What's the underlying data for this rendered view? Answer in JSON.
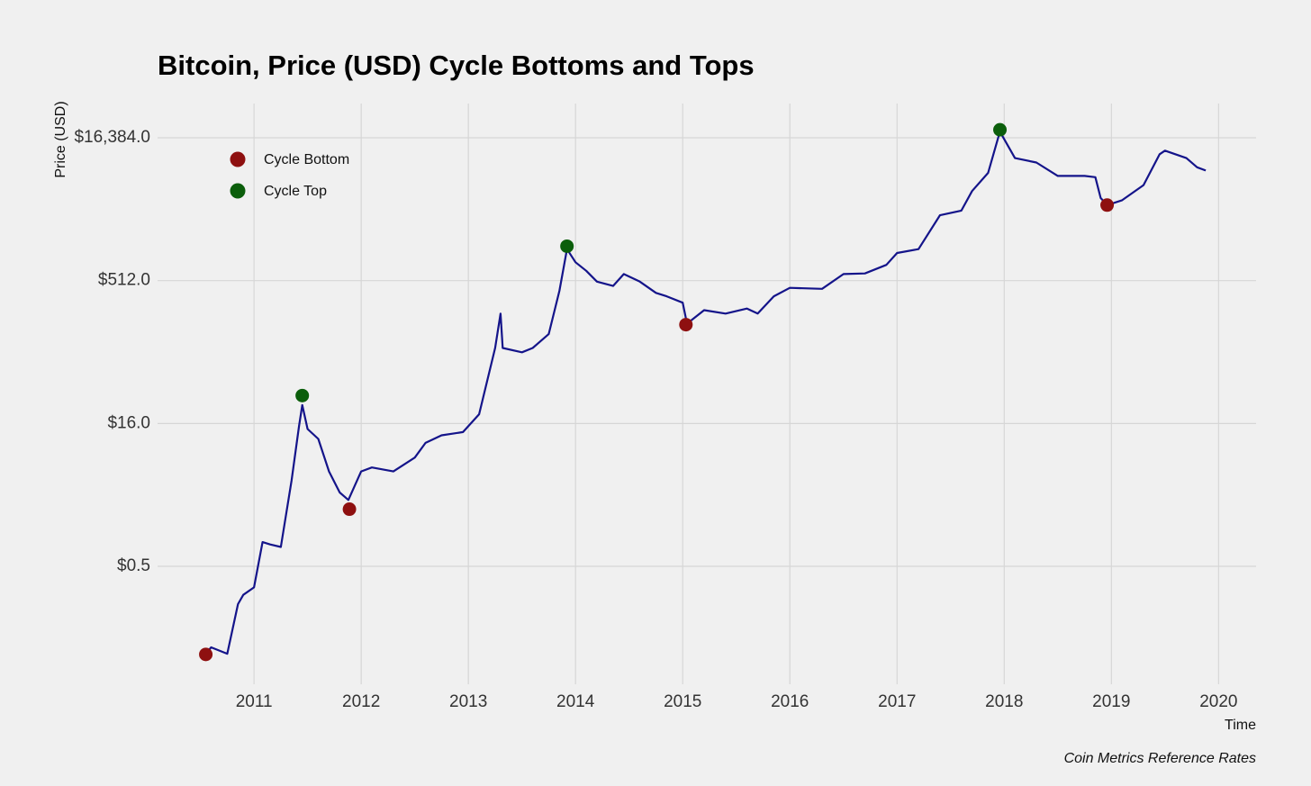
{
  "chart_data": {
    "type": "line",
    "title": "Bitcoin, Price (USD) Cycle Bottoms and Tops",
    "y_label": "Price (USD)",
    "x_label": "Time",
    "caption": "Coin Metrics Reference Rates",
    "log_scale_y": true,
    "grid": true,
    "legend": "top-left",
    "color": "#14148a",
    "x": [
      2010.55,
      2010.6,
      2010.75,
      2010.85,
      2010.9,
      2011.0,
      2011.08,
      2011.15,
      2011.25,
      2011.35,
      2011.42,
      2011.45,
      2011.5,
      2011.6,
      2011.7,
      2011.8,
      2011.88,
      2012.0,
      2012.1,
      2012.3,
      2012.5,
      2012.6,
      2012.75,
      2012.95,
      2013.1,
      2013.25,
      2013.3,
      2013.32,
      2013.5,
      2013.6,
      2013.75,
      2013.85,
      2013.92,
      2014.0,
      2014.1,
      2014.2,
      2014.35,
      2014.45,
      2014.6,
      2014.75,
      2014.85,
      2015.0,
      2015.04,
      2015.2,
      2015.4,
      2015.6,
      2015.7,
      2015.85,
      2016.0,
      2016.3,
      2016.5,
      2016.7,
      2016.9,
      2017.0,
      2017.2,
      2017.4,
      2017.6,
      2017.7,
      2017.85,
      2017.96,
      2018.1,
      2018.3,
      2018.5,
      2018.75,
      2018.85,
      2018.9,
      2018.96,
      2019.1,
      2019.3,
      2019.45,
      2019.5,
      2019.7,
      2019.8,
      2019.88
    ],
    "values": [
      0.06,
      0.07,
      0.06,
      0.2,
      0.25,
      0.3,
      0.9,
      0.85,
      0.8,
      4,
      15,
      25,
      14,
      11,
      5,
      3,
      2.5,
      5,
      5.5,
      5,
      7,
      10,
      12,
      13,
      20,
      100,
      230,
      100,
      90,
      100,
      140,
      400,
      1100,
      800,
      650,
      500,
      450,
      600,
      500,
      380,
      350,
      300,
      180,
      250,
      230,
      260,
      230,
      350,
      430,
      420,
      600,
      610,
      750,
      1000,
      1100,
      2500,
      2800,
      4500,
      7000,
      19000,
      10000,
      9000,
      6500,
      6500,
      6300,
      3800,
      3200,
      3600,
      5200,
      11000,
      12000,
      10000,
      8000,
      7400
    ],
    "markers": [
      {
        "name": "Cycle Bottom",
        "color": "#8e1010",
        "x": [
          2010.55,
          2011.89,
          2015.03,
          2018.96
        ],
        "values": [
          0.059,
          2.0,
          176,
          3200
        ]
      },
      {
        "name": "Cycle Top",
        "color": "#0b5e0b",
        "x": [
          2011.45,
          2013.92,
          2017.96
        ],
        "values": [
          31.5,
          1180,
          19900
        ]
      }
    ],
    "xlim": [
      2010.1,
      2020.35
    ],
    "xticks": [
      2011,
      2012,
      2013,
      2014,
      2015,
      2016,
      2017,
      2018,
      2019,
      2020
    ],
    "ylim": [
      0.0286,
      37600
    ],
    "yticks": [
      {
        "value": 0.5,
        "label": "$0.5"
      },
      {
        "value": 16,
        "label": "$16.0"
      },
      {
        "value": 512,
        "label": "$512.0"
      },
      {
        "value": 16384,
        "label": "$16,384.0"
      }
    ]
  }
}
